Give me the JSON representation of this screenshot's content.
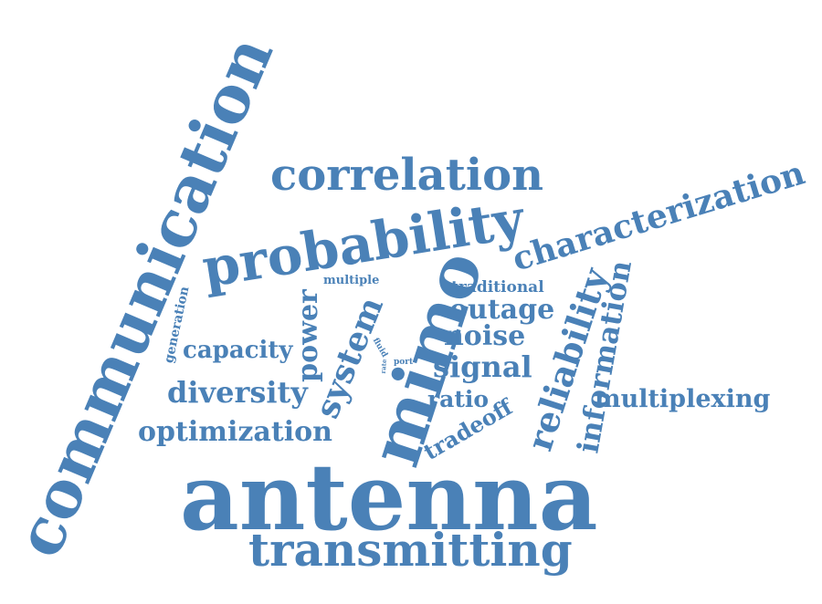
{
  "color": "#4a81b7",
  "words": {
    "communication": "communication",
    "antenna": "antenna",
    "mimo": "mimo",
    "probability": "probability",
    "transmitting": "transmitting",
    "correlation": "correlation",
    "characterization": "characterization",
    "reliability": "reliability",
    "information": "information",
    "system": "system",
    "power": "power",
    "diversity": "diversity",
    "optimization": "optimization",
    "capacity": "capacity",
    "multiplexing": "multiplexing",
    "outage": "outage",
    "noise": "noise",
    "signal": "signal",
    "ratio": "ratio",
    "tradeoff": "tradeoff",
    "traditional": "traditional",
    "multiple": "multiple",
    "generation": "generation",
    "fluid": "fluid",
    "port": "port",
    "rate": "rate"
  }
}
